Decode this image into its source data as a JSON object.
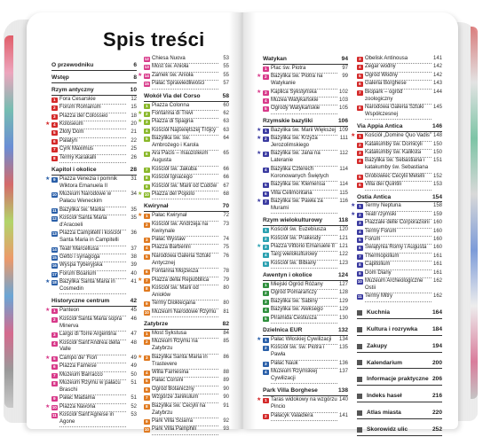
{
  "title": "Spis treści",
  "colors": {
    "red": "#d42a2a",
    "blue": "#2a5fa8",
    "green": "#2f8f3d",
    "pink": "#d83a8a",
    "orange": "#e07a20",
    "teal": "#2aa0b0",
    "lime": "#8ab82a",
    "purple": "#3a3aa0"
  },
  "col1": [
    {
      "kind": "sec",
      "label": "O przewodniku",
      "page": "6",
      "first": true
    },
    {
      "kind": "sec",
      "label": "Wstęp",
      "page": "8"
    },
    {
      "kind": "sec",
      "label": "Rzym antyczny",
      "page": "10"
    },
    {
      "kind": "e",
      "n": "1",
      "c": "red",
      "label": "Fora Cesarskie",
      "page": "12"
    },
    {
      "kind": "e",
      "n": "2",
      "c": "red",
      "label": "Forum Romanum",
      "page": "15"
    },
    {
      "kind": "e",
      "n": "3",
      "c": "red",
      "label": "Piazza del Colosseo",
      "page": "18"
    },
    {
      "kind": "e",
      "n": "4",
      "c": "red",
      "star": true,
      "label": "Koloseum",
      "page": "20"
    },
    {
      "kind": "e",
      "n": "5",
      "c": "red",
      "label": "Złoty Dom",
      "page": "21"
    },
    {
      "kind": "e",
      "n": "6",
      "c": "red",
      "label": "Palatyn",
      "page": "22"
    },
    {
      "kind": "e",
      "n": "7",
      "c": "red",
      "label": "Cyrk Maximus",
      "page": "25"
    },
    {
      "kind": "e",
      "n": "8",
      "c": "red",
      "label": "Termy Karakalli",
      "page": "26"
    },
    {
      "kind": "sec",
      "label": "Kapitol i okolice",
      "page": "28"
    },
    {
      "kind": "e",
      "n": "9",
      "c": "blue",
      "star": true,
      "label": "Piazza Venezia i pomnik Wiktora Emanuela II",
      "page": "31"
    },
    {
      "kind": "e",
      "n": "10",
      "c": "blue",
      "label": "Muzeum Narodowe w Pałacu Weneckim",
      "page": "34"
    },
    {
      "kind": "e",
      "n": "11",
      "c": "blue",
      "label": "Bazylika św. Marka",
      "page": "35"
    },
    {
      "kind": "e",
      "n": "12",
      "c": "blue",
      "label": "Kościół Santa Maria d'Aracoeli",
      "page": "35"
    },
    {
      "kind": "e",
      "n": "13",
      "c": "blue",
      "label": "Piazza Campitelli i kościół Santa Maria in Campitelli",
      "page": "36"
    },
    {
      "kind": "e",
      "n": "14",
      "c": "blue",
      "label": "Teatr Marcellusa",
      "page": "37"
    },
    {
      "kind": "e",
      "n": "15",
      "c": "blue",
      "label": "Getto i synagoga",
      "page": "38"
    },
    {
      "kind": "e",
      "n": "16",
      "c": "blue",
      "label": "Wyspa Tyberyjska",
      "page": "39"
    },
    {
      "kind": "e",
      "n": "17",
      "c": "blue",
      "label": "Forum Boarium",
      "page": "40"
    },
    {
      "kind": "e",
      "n": "18",
      "c": "blue",
      "star": true,
      "label": "Bazylika Santa Maria in Cosmedin",
      "page": "41"
    },
    {
      "kind": "sec",
      "label": "Historyczne centrum",
      "page": "42"
    },
    {
      "kind": "e",
      "n": "1",
      "c": "pink",
      "star": true,
      "label": "Panteon",
      "page": "45"
    },
    {
      "kind": "e",
      "n": "2",
      "c": "pink",
      "label": "Kościół Santa Maria sopra Minerva",
      "page": "46"
    },
    {
      "kind": "e",
      "n": "3",
      "c": "pink",
      "label": "Largo di Torre Argentina",
      "page": "47"
    },
    {
      "kind": "e",
      "n": "4",
      "c": "pink",
      "label": "Kościół Sant'Andrea della Valle",
      "page": "48"
    },
    {
      "kind": "e",
      "n": "5",
      "c": "pink",
      "star": true,
      "label": "Campo de' Fiori",
      "page": "49"
    },
    {
      "kind": "e",
      "n": "6",
      "c": "pink",
      "label": "Piazza Farnese",
      "page": "49"
    },
    {
      "kind": "e",
      "n": "7",
      "c": "pink",
      "label": "Muzeum Barracco",
      "page": "50"
    },
    {
      "kind": "e",
      "n": "8",
      "c": "pink",
      "label": "Muzeum Rzymu w pałacu Braschi",
      "page": "51"
    },
    {
      "kind": "e",
      "n": "9",
      "c": "pink",
      "label": "Pałac Madama",
      "page": "51"
    },
    {
      "kind": "e",
      "n": "10",
      "c": "pink",
      "star": true,
      "label": "Piazza Navona",
      "page": "52"
    },
    {
      "kind": "e",
      "n": "11",
      "c": "pink",
      "label": "Kościół Sant'Agnese in Agone",
      "page": "53"
    }
  ],
  "col2": [
    {
      "kind": "e",
      "n": "12",
      "c": "pink",
      "label": "Chiesa Nuova",
      "page": "53"
    },
    {
      "kind": "e",
      "n": "13",
      "c": "pink",
      "label": "Most św. Anioła",
      "page": "55"
    },
    {
      "kind": "e",
      "n": "14",
      "c": "pink",
      "star": true,
      "label": "Zamek św. Anioła",
      "page": "55"
    },
    {
      "kind": "e",
      "n": "15",
      "c": "pink",
      "label": "Pałac Sprawiedliwości",
      "page": "57"
    },
    {
      "kind": "sec",
      "label": "Wokół Via del Corso",
      "page": "58"
    },
    {
      "kind": "e",
      "n": "1",
      "c": "lime",
      "label": "Piazza Colonna",
      "page": "60"
    },
    {
      "kind": "e",
      "n": "2",
      "c": "lime",
      "star": true,
      "label": "Fontanna di Trevi",
      "page": "62"
    },
    {
      "kind": "e",
      "n": "3",
      "c": "lime",
      "star": true,
      "label": "Piazza di Spagna",
      "page": "63"
    },
    {
      "kind": "e",
      "n": "4",
      "c": "lime",
      "label": "Kościół Najświętszej Trójcy",
      "page": "63"
    },
    {
      "kind": "e",
      "n": "5",
      "c": "lime",
      "label": "Bazylika św. św. Ambrożego i Karola",
      "page": "64"
    },
    {
      "kind": "e",
      "n": "6",
      "c": "lime",
      "label": "Ara Pacis – mauzoleum Augusta",
      "page": "65"
    },
    {
      "kind": "e",
      "n": "7",
      "c": "lime",
      "label": "Kościół św. Jakuba",
      "page": "66"
    },
    {
      "kind": "e",
      "n": "8",
      "c": "lime",
      "label": "Kościół Ignacego",
      "page": "66"
    },
    {
      "kind": "e",
      "n": "9",
      "c": "lime",
      "label": "Kościół św. Marii od Cudów",
      "page": "67"
    },
    {
      "kind": "e",
      "n": "10",
      "c": "lime",
      "star": true,
      "label": "Piazza del Popolo",
      "page": "68"
    },
    {
      "kind": "sec",
      "label": "Kwirynał",
      "page": "70"
    },
    {
      "kind": "e",
      "n": "1",
      "c": "orange",
      "star": true,
      "label": "Pałac Kwirynał",
      "page": "72"
    },
    {
      "kind": "e",
      "n": "2",
      "c": "orange",
      "label": "Kościół św. Andrzeja na Kwirynale",
      "page": "73"
    },
    {
      "kind": "e",
      "n": "3",
      "c": "orange",
      "label": "Pałac Wystaw",
      "page": "74"
    },
    {
      "kind": "e",
      "n": "4",
      "c": "orange",
      "label": "Piazza Barberini",
      "page": "75"
    },
    {
      "kind": "e",
      "n": "5",
      "c": "orange",
      "label": "Narodowa Galeria Sztuki Antycznej",
      "page": "76"
    },
    {
      "kind": "e",
      "n": "6",
      "c": "orange",
      "label": "Fontanna Mojżesza",
      "page": "78"
    },
    {
      "kind": "e",
      "n": "7",
      "c": "orange",
      "star": true,
      "label": "Piazza della Repubblica",
      "page": "79"
    },
    {
      "kind": "e",
      "n": "8",
      "c": "orange",
      "label": "Kościół św. Marii od Aniołów",
      "page": "80"
    },
    {
      "kind": "e",
      "n": "9",
      "c": "orange",
      "label": "Termy Dioklecjana",
      "page": "80"
    },
    {
      "kind": "e",
      "n": "10",
      "c": "orange",
      "label": "Muzeum Narodowe Rzymu",
      "page": "81"
    },
    {
      "kind": "sec",
      "label": "Zatybrze",
      "page": "82"
    },
    {
      "kind": "e",
      "n": "1",
      "c": "orange",
      "label": "Most Sykstusa",
      "page": "84"
    },
    {
      "kind": "e",
      "n": "2",
      "c": "orange",
      "label": "Muzeum Rzymu na Zatybrzu",
      "page": "85"
    },
    {
      "kind": "e",
      "n": "3",
      "c": "orange",
      "star": true,
      "label": "Bazylika Santa Maria in Trastevere",
      "page": "86"
    },
    {
      "kind": "e",
      "n": "4",
      "c": "orange",
      "label": "Willa Farnesina",
      "page": "88"
    },
    {
      "kind": "e",
      "n": "5",
      "c": "orange",
      "label": "Pałac Corsini",
      "page": "89"
    },
    {
      "kind": "e",
      "n": "6",
      "c": "orange",
      "label": "Ogród Botaniczny",
      "page": "90"
    },
    {
      "kind": "e",
      "n": "7",
      "c": "orange",
      "label": "Wzgórze Janikulum",
      "page": "90"
    },
    {
      "kind": "e",
      "n": "8",
      "c": "orange",
      "label": "Bazylika św. Cecylii na Zatybrzu",
      "page": "91"
    },
    {
      "kind": "e",
      "n": "9",
      "c": "orange",
      "label": "Park Villa Sciarra",
      "page": "92"
    },
    {
      "kind": "e",
      "n": "10",
      "c": "orange",
      "label": "Park Villa Pamphili",
      "page": "93"
    }
  ],
  "col3": [
    {
      "kind": "sec",
      "label": "Watykan",
      "page": "94",
      "first": true
    },
    {
      "kind": "e",
      "n": "1",
      "c": "pink",
      "label": "Plac św. Piotra",
      "page": "97"
    },
    {
      "kind": "e",
      "n": "2",
      "c": "pink",
      "star": true,
      "label": "Bazylika św. Piotra na Watykanie",
      "page": "99"
    },
    {
      "kind": "e",
      "n": "3",
      "c": "pink",
      "star": true,
      "label": "Kaplica Sykstyńska",
      "page": "102"
    },
    {
      "kind": "e",
      "n": "4",
      "c": "pink",
      "label": "Muzea Watykańskie",
      "page": "103"
    },
    {
      "kind": "e",
      "n": "5",
      "c": "pink",
      "label": "Ogrody Watykańskie",
      "page": "105"
    },
    {
      "kind": "sec",
      "label": "Rzymskie bazyliki",
      "page": "106"
    },
    {
      "kind": "e",
      "n": "1",
      "c": "purple",
      "star": true,
      "label": "Bazylika św. Marii Większej",
      "page": "109"
    },
    {
      "kind": "e",
      "n": "2",
      "c": "purple",
      "star": true,
      "label": "Bazylika św. Krzyża Jerozolimskiego",
      "page": "111"
    },
    {
      "kind": "e",
      "n": "3",
      "c": "purple",
      "star": true,
      "label": "Bazylika św. Jana na Lateranie",
      "page": "112"
    },
    {
      "kind": "e",
      "n": "4",
      "c": "purple",
      "label": "Bazylika Czterech Koronowanych Świętych",
      "page": "114"
    },
    {
      "kind": "e",
      "n": "5",
      "c": "purple",
      "label": "Bazylika św. Klemensa",
      "page": "114"
    },
    {
      "kind": "e",
      "n": "6",
      "c": "purple",
      "label": "Villa Celimontana",
      "page": "115"
    },
    {
      "kind": "e",
      "n": "7",
      "c": "purple",
      "star": true,
      "label": "Bazylika św. Pawła za Murami",
      "page": "116"
    },
    {
      "kind": "sec",
      "label": "Rzym wielokulturowy",
      "page": "118"
    },
    {
      "kind": "e",
      "n": "1",
      "c": "teal",
      "label": "Kościół św. Euzebiusza",
      "page": "120"
    },
    {
      "kind": "e",
      "n": "2",
      "c": "teal",
      "label": "Kościół św. Prakesdy",
      "page": "121"
    },
    {
      "kind": "e",
      "n": "3",
      "c": "teal",
      "star": true,
      "label": "Piazza Vittorio Emanuele II",
      "page": "121"
    },
    {
      "kind": "e",
      "n": "4",
      "c": "teal",
      "label": "Targ wielokulturowy",
      "page": "122"
    },
    {
      "kind": "e",
      "n": "5",
      "c": "teal",
      "label": "Kościół św. Bibiany",
      "page": "123"
    },
    {
      "kind": "sec",
      "label": "Awentyn i okolice",
      "page": "124"
    },
    {
      "kind": "e",
      "n": "1",
      "c": "green",
      "label": "Miejski Ogród Różany",
      "page": "127"
    },
    {
      "kind": "e",
      "n": "2",
      "c": "green",
      "label": "Ogród Pomarańczy",
      "page": "128"
    },
    {
      "kind": "e",
      "n": "3",
      "c": "green",
      "label": "Bazylika św. Sabiny",
      "page": "129"
    },
    {
      "kind": "e",
      "n": "4",
      "c": "green",
      "label": "Bazylika św. Aleksego",
      "page": "129"
    },
    {
      "kind": "e",
      "n": "5",
      "c": "green",
      "label": "Piramida Cestiusza",
      "page": "130"
    },
    {
      "kind": "sec",
      "label": "Dzielnica EUR",
      "page": "132"
    },
    {
      "kind": "e",
      "n": "1",
      "c": "blue",
      "star": true,
      "label": "Pałac Włoskiej Cywilizacji",
      "page": "134"
    },
    {
      "kind": "e",
      "n": "2",
      "c": "blue",
      "label": "Kościół św. św. Piotra i Pawła",
      "page": "135"
    },
    {
      "kind": "e",
      "n": "3",
      "c": "blue",
      "label": "Pałac Nauk",
      "page": "136"
    },
    {
      "kind": "e",
      "n": "4",
      "c": "blue",
      "label": "Muzeum Rzymskiej Cywilizacji",
      "page": "137"
    },
    {
      "kind": "sec",
      "label": "Park Villa Borghese",
      "page": "138"
    },
    {
      "kind": "e",
      "n": "1",
      "c": "red",
      "star": true,
      "label": "Taras widokowy na wzgórzu Pincio",
      "page": "140"
    },
    {
      "kind": "e",
      "n": "2",
      "c": "red",
      "label": "Pałacyk Valadiera",
      "page": "141"
    }
  ],
  "col4": [
    {
      "kind": "e",
      "n": "3",
      "c": "red",
      "label": "Obelisk Antinousa",
      "page": "141"
    },
    {
      "kind": "e",
      "n": "4",
      "c": "red",
      "label": "Zegar wodny",
      "page": "142"
    },
    {
      "kind": "e",
      "n": "5",
      "c": "red",
      "label": "Ogród Wodny",
      "page": "142"
    },
    {
      "kind": "e",
      "n": "6",
      "c": "red",
      "label": "Galeria Borghese",
      "page": "143"
    },
    {
      "kind": "e",
      "n": "7",
      "c": "red",
      "label": "Biopark – ogród zoologiczny",
      "page": "144"
    },
    {
      "kind": "e",
      "n": "8",
      "c": "red",
      "label": "Narodowa Galeria Sztuki Współczesnej",
      "page": "145"
    },
    {
      "kind": "sec",
      "label": "Via Appia Antica",
      "page": "146"
    },
    {
      "kind": "e",
      "n": "1",
      "c": "red",
      "star": true,
      "label": "Kościół „Domine Quo Vadis”",
      "page": "148"
    },
    {
      "kind": "e",
      "n": "2",
      "c": "red",
      "label": "Katakumby św. Domicyli",
      "page": "150"
    },
    {
      "kind": "e",
      "n": "3",
      "c": "red",
      "label": "Katakumby św. Kaliksta",
      "page": "150"
    },
    {
      "kind": "e",
      "n": "4",
      "c": "red",
      "label": "Bazylika św. Sebastiana i katakumby św. Sebastiana",
      "page": "151"
    },
    {
      "kind": "e",
      "n": "5",
      "c": "red",
      "label": "Grobowiec Cecylii Metelli",
      "page": "152"
    },
    {
      "kind": "e",
      "n": "6",
      "c": "red",
      "label": "Villa dei Quintili",
      "page": "153"
    },
    {
      "kind": "sec",
      "label": "Ostia Antica",
      "page": "154"
    },
    {
      "kind": "e",
      "n": "1",
      "c": "purple",
      "star": true,
      "label": "Termy Neptuna",
      "page": "158"
    },
    {
      "kind": "e",
      "n": "2",
      "c": "purple",
      "star": true,
      "label": "Teatr rzymski",
      "page": "159"
    },
    {
      "kind": "e",
      "n": "3",
      "c": "purple",
      "label": "Piazzale delle Corporazioni",
      "page": "160"
    },
    {
      "kind": "e",
      "n": "4",
      "c": "purple",
      "label": "Termy Forum",
      "page": "160"
    },
    {
      "kind": "e",
      "n": "5",
      "c": "purple",
      "label": "Forum",
      "page": "160"
    },
    {
      "kind": "e",
      "n": "6",
      "c": "purple",
      "label": "Świątynia Romy i Augusta",
      "page": "160"
    },
    {
      "kind": "e",
      "n": "7",
      "c": "purple",
      "label": "Thermopolium",
      "page": "161"
    },
    {
      "kind": "e",
      "n": "8",
      "c": "purple",
      "label": "Capitolium",
      "page": "161"
    },
    {
      "kind": "e",
      "n": "9",
      "c": "purple",
      "label": "Dom Diany",
      "page": "161"
    },
    {
      "kind": "e",
      "n": "10",
      "c": "purple",
      "label": "Muzeum Archeologiczne Ostii",
      "page": "162"
    },
    {
      "kind": "e",
      "n": "11",
      "c": "purple",
      "label": "Termy Mitry",
      "page": "162"
    },
    {
      "kind": "big",
      "label": "Kuchnia",
      "page": "164"
    },
    {
      "kind": "big",
      "label": "Kultura i rozrywka",
      "page": "184"
    },
    {
      "kind": "big",
      "label": "Zakupy",
      "page": "194"
    },
    {
      "kind": "big",
      "label": "Kalendarium",
      "page": "200"
    },
    {
      "kind": "big",
      "label": "Informacje praktyczne",
      "page": "206"
    },
    {
      "kind": "big",
      "label": "Indeks haseł",
      "page": "216"
    },
    {
      "kind": "big",
      "label": "Atlas miasta",
      "page": "220"
    },
    {
      "kind": "big",
      "label": "Skorowidz ulic",
      "page": "252"
    }
  ]
}
